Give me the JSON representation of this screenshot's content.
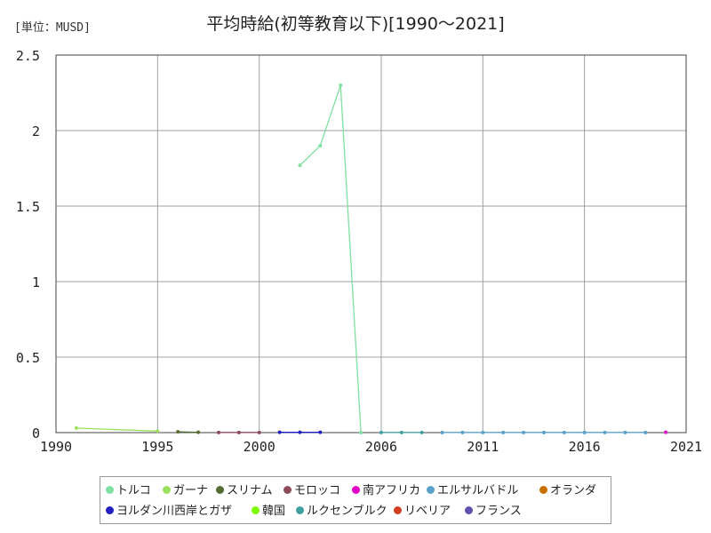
{
  "unit_label": "[単位：MUSD]",
  "chart_data": {
    "type": "line",
    "title": "平均時給(初等教育以下)[1990〜2021]",
    "xlabel": "",
    "ylabel": "",
    "xlim": [
      1990,
      2021
    ],
    "ylim": [
      0,
      2.5
    ],
    "xticks": [
      1990,
      1995,
      2000,
      2006,
      2011,
      2016,
      2021
    ],
    "yticks": [
      0,
      0.5,
      1,
      1.5,
      2,
      2.5
    ],
    "ytick_labels": [
      "0",
      "0.5",
      "1",
      "1.5",
      "2",
      "2.5"
    ],
    "grid": true,
    "legend_position": "bottom",
    "series": [
      {
        "name": "トルコ",
        "color": "#7fe0a0",
        "x": [
          2002,
          2003,
          2004,
          2005
        ],
        "y": [
          1.77,
          1.9,
          2.3,
          0.0
        ]
      },
      {
        "name": "ガーナ",
        "color": "#9be05c",
        "x": [
          1991,
          1995
        ],
        "y": [
          0.03,
          0.01
        ]
      },
      {
        "name": "スリナム",
        "color": "#556b2f",
        "x": [
          1996,
          1997
        ],
        "y": [
          0.005,
          0.002
        ]
      },
      {
        "name": "モロッコ",
        "color": "#8b4b5a",
        "x": [
          1998,
          1999,
          2000
        ],
        "y": [
          0.001,
          0.001,
          0.001
        ]
      },
      {
        "name": "南アフリカ",
        "color": "#e000c8",
        "x": [
          2020
        ],
        "y": [
          0.002
        ]
      },
      {
        "name": "エルサルバドル",
        "color": "#5aa0c8",
        "x": [
          2009,
          2010,
          2011,
          2012,
          2013,
          2014,
          2015,
          2016,
          2017,
          2018,
          2019
        ],
        "y": [
          0.001,
          0.001,
          0.001,
          0.001,
          0.001,
          0.001,
          0.001,
          0.001,
          0.001,
          0.001,
          0.001
        ]
      },
      {
        "name": "オランダ",
        "color": "#c87000",
        "x": [],
        "y": []
      },
      {
        "name": "ヨルダン川西岸とガザ",
        "color": "#2020c0",
        "x": [
          2001,
          2002,
          2003
        ],
        "y": [
          0.002,
          0.002,
          0.002
        ]
      },
      {
        "name": "韓国",
        "color": "#7cfc00",
        "x": [],
        "y": []
      },
      {
        "name": "ルクセンブルク",
        "color": "#40a0a0",
        "x": [
          2006,
          2007,
          2008
        ],
        "y": [
          0.001,
          0.001,
          0.001
        ]
      },
      {
        "name": "リベリア",
        "color": "#d04020",
        "x": [],
        "y": []
      },
      {
        "name": "フランス",
        "color": "#6050b0",
        "x": [],
        "y": []
      }
    ]
  }
}
